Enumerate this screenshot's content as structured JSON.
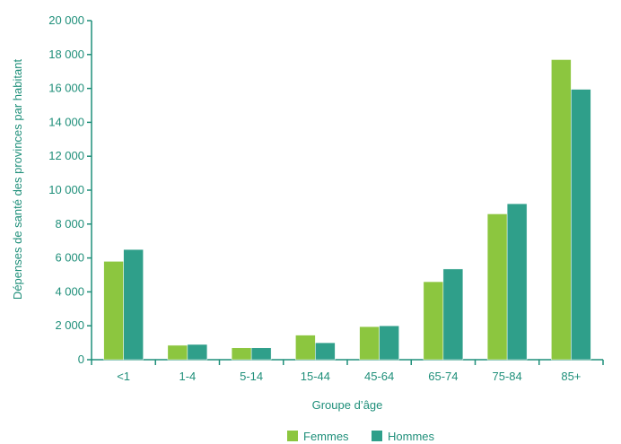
{
  "chart_data": {
    "type": "bar",
    "title": "",
    "xlabel": "Groupe d’âge",
    "ylabel": "Dépenses de santé des provinces par habitant",
    "categories": [
      "<1",
      "1-4",
      "5-14",
      "15-44",
      "45-64",
      "65-74",
      "75-84",
      "85+"
    ],
    "series": [
      {
        "name": "Femmes",
        "color": "#8cc63f",
        "values": [
          5800,
          850,
          700,
          1450,
          1950,
          4600,
          8600,
          17700
        ]
      },
      {
        "name": "Hommes",
        "color": "#2f9f8a",
        "values": [
          6500,
          900,
          700,
          1000,
          2000,
          5350,
          9200,
          15950
        ]
      }
    ],
    "ylim": [
      0,
      20000
    ],
    "yticks": [
      0,
      2000,
      4000,
      6000,
      8000,
      10000,
      12000,
      14000,
      16000,
      18000,
      20000
    ],
    "ytick_labels": [
      "0",
      "2 000",
      "4 000",
      "6 000",
      "8 000",
      "10 000",
      "12 000",
      "14 000",
      "16 000",
      "18 000",
      "20 000"
    ],
    "grid": false,
    "legend_position": "bottom-center"
  }
}
